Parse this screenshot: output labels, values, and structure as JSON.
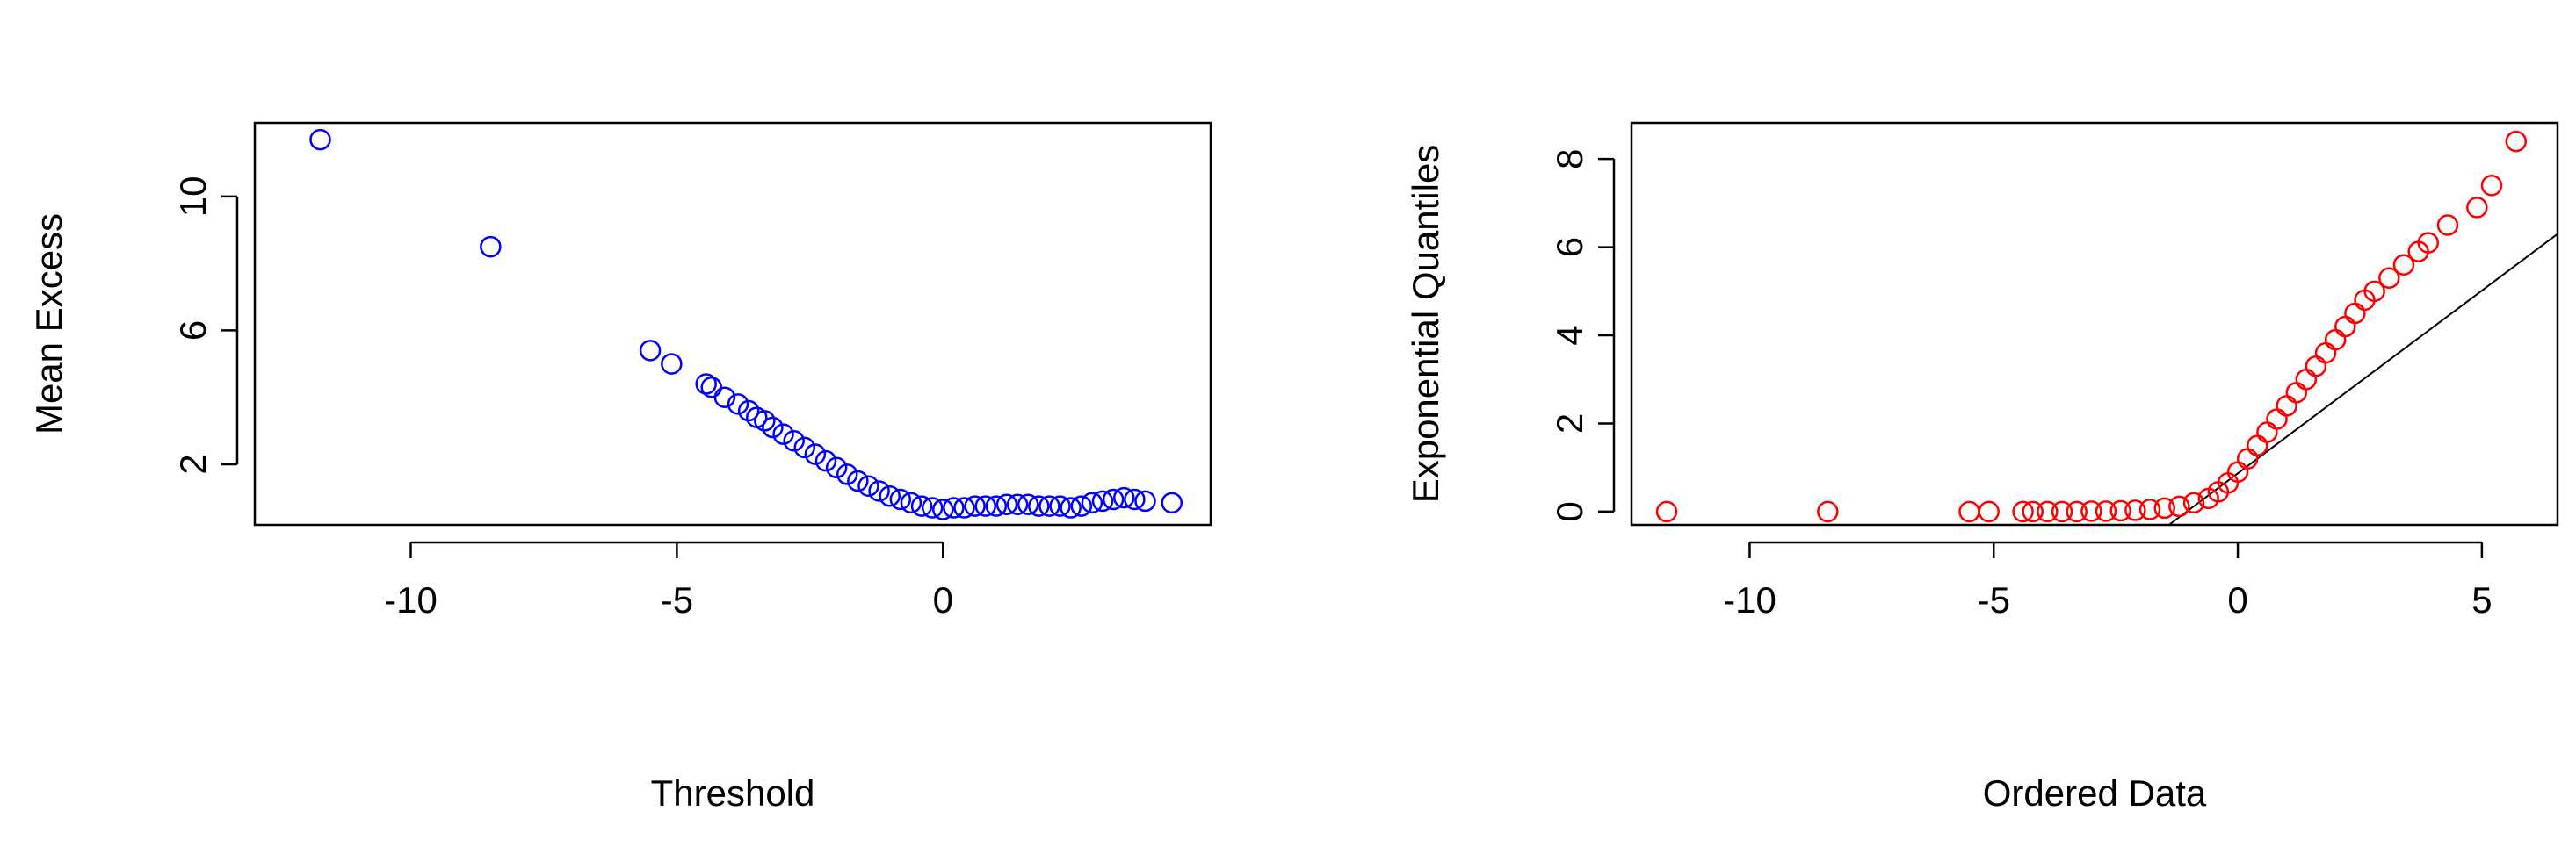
{
  "chart_data": [
    {
      "type": "scatter",
      "x_label": "Threshold",
      "y_label": "Mean Excess",
      "color": "#0000ff",
      "xlim": [
        -12.93,
        5.03
      ],
      "ylim": [
        0.19,
        12.2
      ],
      "xticks": [
        -10,
        -5,
        0
      ],
      "yticks": [
        2,
        6,
        10
      ],
      "x": [
        -11.7,
        -8.5,
        -5.5,
        -5.1,
        -4.45,
        -4.35,
        -4.1,
        -3.85,
        -3.65,
        -3.5,
        -3.35,
        -3.2,
        -3.0,
        -2.8,
        -2.6,
        -2.4,
        -2.2,
        -2.0,
        -1.8,
        -1.6,
        -1.4,
        -1.2,
        -1.0,
        -0.8,
        -0.6,
        -0.4,
        -0.2,
        0,
        0.2,
        0.4,
        0.6,
        0.8,
        1.0,
        1.2,
        1.4,
        1.6,
        1.8,
        2.0,
        2.2,
        2.4,
        2.6,
        2.8,
        3.0,
        3.2,
        3.4,
        3.6,
        3.8,
        4.3
      ],
      "y": [
        11.7,
        8.5,
        5.4,
        5.0,
        4.4,
        4.3,
        4.0,
        3.8,
        3.6,
        3.4,
        3.3,
        3.1,
        2.9,
        2.7,
        2.5,
        2.3,
        2.1,
        1.9,
        1.7,
        1.5,
        1.35,
        1.2,
        1.05,
        0.95,
        0.85,
        0.75,
        0.7,
        0.65,
        0.7,
        0.7,
        0.75,
        0.75,
        0.75,
        0.8,
        0.8,
        0.8,
        0.75,
        0.75,
        0.75,
        0.7,
        0.75,
        0.85,
        0.9,
        0.95,
        1.0,
        0.95,
        0.9,
        0.85
      ]
    },
    {
      "type": "scatter",
      "x_label": "Ordered Data",
      "y_label": "Exponential Quantiles",
      "color": "#ff0000",
      "xlim": [
        -12.42,
        6.55
      ],
      "ylim": [
        -0.3,
        8.82
      ],
      "xticks": [
        -10,
        -5,
        0,
        5
      ],
      "yticks": [
        0,
        2,
        4,
        6,
        8
      ],
      "x": [
        -11.7,
        -8.4,
        -5.5,
        -5.1,
        -4.4,
        -4.2,
        -3.9,
        -3.6,
        -3.3,
        -3.0,
        -2.7,
        -2.4,
        -2.1,
        -1.8,
        -1.5,
        -1.2,
        -0.9,
        -0.6,
        -0.4,
        -0.2,
        0,
        0.2,
        0.4,
        0.6,
        0.8,
        1.0,
        1.2,
        1.4,
        1.6,
        1.8,
        2.0,
        2.2,
        2.4,
        2.6,
        2.8,
        3.1,
        3.4,
        3.7,
        3.9,
        4.3,
        4.9,
        5.2,
        5.7
      ],
      "y": [
        0,
        0,
        0,
        0,
        0,
        0,
        0,
        0,
        0,
        0.01,
        0.01,
        0.02,
        0.03,
        0.05,
        0.08,
        0.12,
        0.2,
        0.3,
        0.45,
        0.65,
        0.9,
        1.2,
        1.5,
        1.8,
        2.1,
        2.4,
        2.7,
        3.0,
        3.3,
        3.6,
        3.9,
        4.2,
        4.5,
        4.8,
        5.0,
        5.3,
        5.6,
        5.9,
        6.1,
        6.5,
        6.9,
        7.4,
        8.4
      ],
      "reference_line": {
        "color": "#000000",
        "x": [
          -1.41,
          6.55
        ],
        "y": [
          -0.3,
          6.3
        ]
      }
    }
  ]
}
